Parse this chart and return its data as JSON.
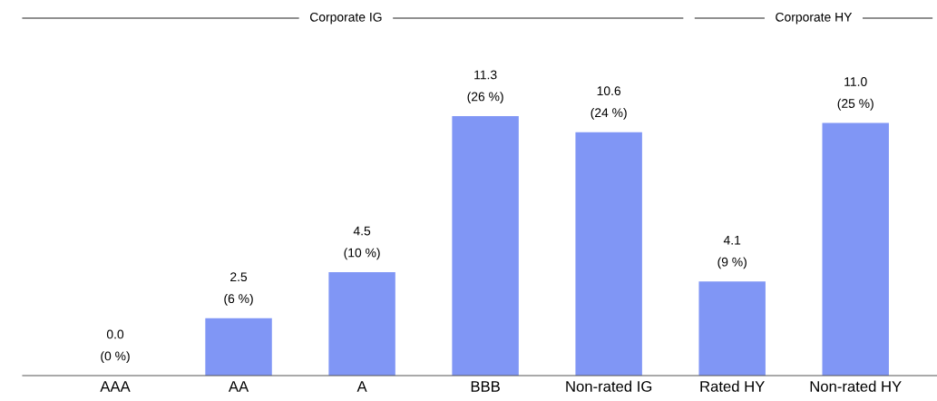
{
  "chart_data": {
    "type": "bar",
    "categories": [
      "AAA",
      "AA",
      "A",
      "BBB",
      "Non-rated IG",
      "Rated HY",
      "Non-rated HY"
    ],
    "values": [
      0.0,
      2.5,
      4.5,
      11.3,
      10.6,
      4.1,
      11.0
    ],
    "color": "#8096f5",
    "value_labels": [
      "0.0\n(0 %)",
      "2.5\n(6 %)",
      "4.5\n(10 %)",
      "11.3\n(26 %)",
      "10.6\n(24 %)",
      "4.1\n(9 %)",
      "11.0\n(25 %)"
    ],
    "annotations": [
      "Corporate IG",
      "Corporate HY"
    ],
    "grid": false,
    "legend": false
  }
}
